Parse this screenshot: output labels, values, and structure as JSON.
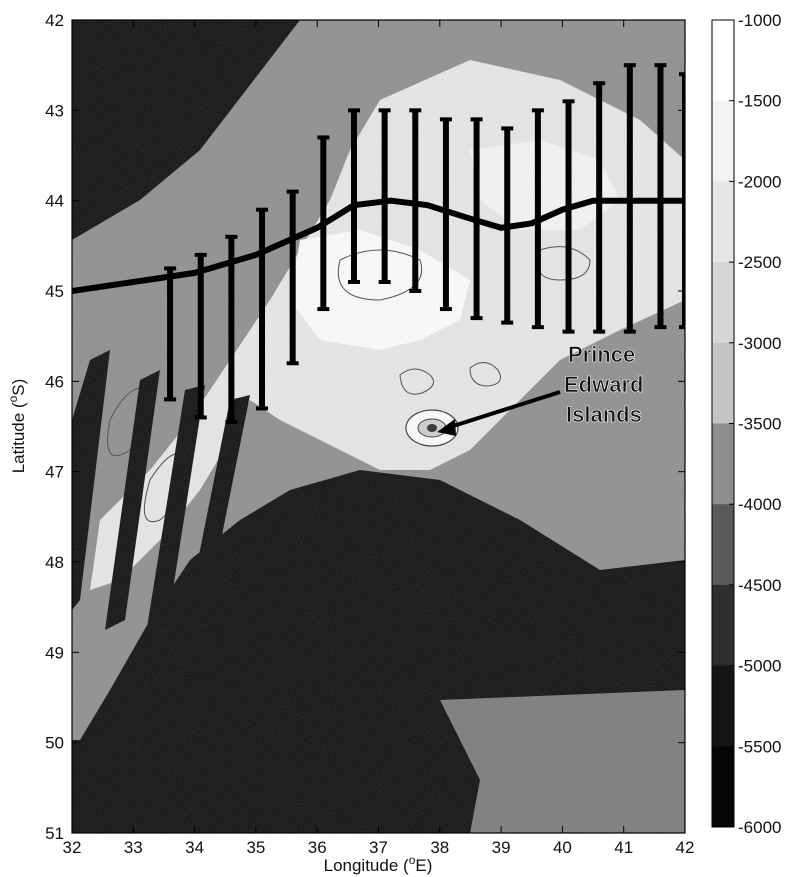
{
  "map": {
    "xlabel_main": "Longitude (",
    "xlabel_unit": "E)",
    "ylabel_main": "Latitude (",
    "ylabel_unit": "S)",
    "degree_mark": "o",
    "x_ticks": [
      "32",
      "33",
      "34",
      "35",
      "36",
      "37",
      "38",
      "39",
      "40",
      "41",
      "42"
    ],
    "y_ticks": [
      "42",
      "43",
      "44",
      "45",
      "46",
      "47",
      "48",
      "49",
      "50",
      "51"
    ],
    "x_range": [
      32,
      42
    ],
    "y_range": [
      42,
      51
    ],
    "annotation": {
      "lines": [
        "Prince",
        "Edward",
        "Islands"
      ],
      "points_to": [
        38.0,
        46.85
      ]
    },
    "colorbar": {
      "ticks": [
        "-1000",
        "-1500",
        "-2000",
        "-2500",
        "-3000",
        "-3500",
        "-4000",
        "-4500",
        "-5000",
        "-5500",
        "-6000"
      ],
      "levels": [
        -1000,
        -6000
      ],
      "band_colors": [
        "#ffffff",
        "#f3f3f3",
        "#e6e6e6",
        "#d6d6d6",
        "#c4c4c4",
        "#8e8e8e",
        "#5a5a5a",
        "#2e2e2e",
        "#151515",
        "#050505"
      ]
    },
    "track": {
      "lon": [
        32.0,
        33.0,
        34.0,
        35.0,
        36.0,
        36.6,
        37.2,
        37.8,
        38.5,
        39.0,
        39.5,
        40.0,
        40.5,
        41.0,
        41.5,
        42.0
      ],
      "lat": [
        45.0,
        44.9,
        44.8,
        44.6,
        44.3,
        44.05,
        44.0,
        44.05,
        44.2,
        44.3,
        44.25,
        44.1,
        44.0,
        44.0,
        44.0,
        44.0
      ]
    },
    "bars": [
      {
        "lon": 33.6,
        "top": 44.75,
        "bottom": 46.2
      },
      {
        "lon": 34.1,
        "top": 44.6,
        "bottom": 46.4
      },
      {
        "lon": 34.6,
        "top": 44.4,
        "bottom": 46.45
      },
      {
        "lon": 35.1,
        "top": 44.1,
        "bottom": 46.3
      },
      {
        "lon": 35.6,
        "top": 43.9,
        "bottom": 45.8
      },
      {
        "lon": 36.1,
        "top": 43.3,
        "bottom": 45.2
      },
      {
        "lon": 36.6,
        "top": 43.0,
        "bottom": 44.9
      },
      {
        "lon": 37.1,
        "top": 43.0,
        "bottom": 44.9
      },
      {
        "lon": 37.6,
        "top": 43.0,
        "bottom": 45.0
      },
      {
        "lon": 38.1,
        "top": 43.1,
        "bottom": 45.2
      },
      {
        "lon": 38.6,
        "top": 43.1,
        "bottom": 45.3
      },
      {
        "lon": 39.1,
        "top": 43.2,
        "bottom": 45.35
      },
      {
        "lon": 39.6,
        "top": 43.0,
        "bottom": 45.4
      },
      {
        "lon": 40.1,
        "top": 42.9,
        "bottom": 45.45
      },
      {
        "lon": 40.6,
        "top": 42.7,
        "bottom": 45.45
      },
      {
        "lon": 41.1,
        "top": 42.5,
        "bottom": 45.45
      },
      {
        "lon": 41.6,
        "top": 42.5,
        "bottom": 45.4
      },
      {
        "lon": 42.0,
        "top": 42.6,
        "bottom": 45.4
      }
    ]
  }
}
